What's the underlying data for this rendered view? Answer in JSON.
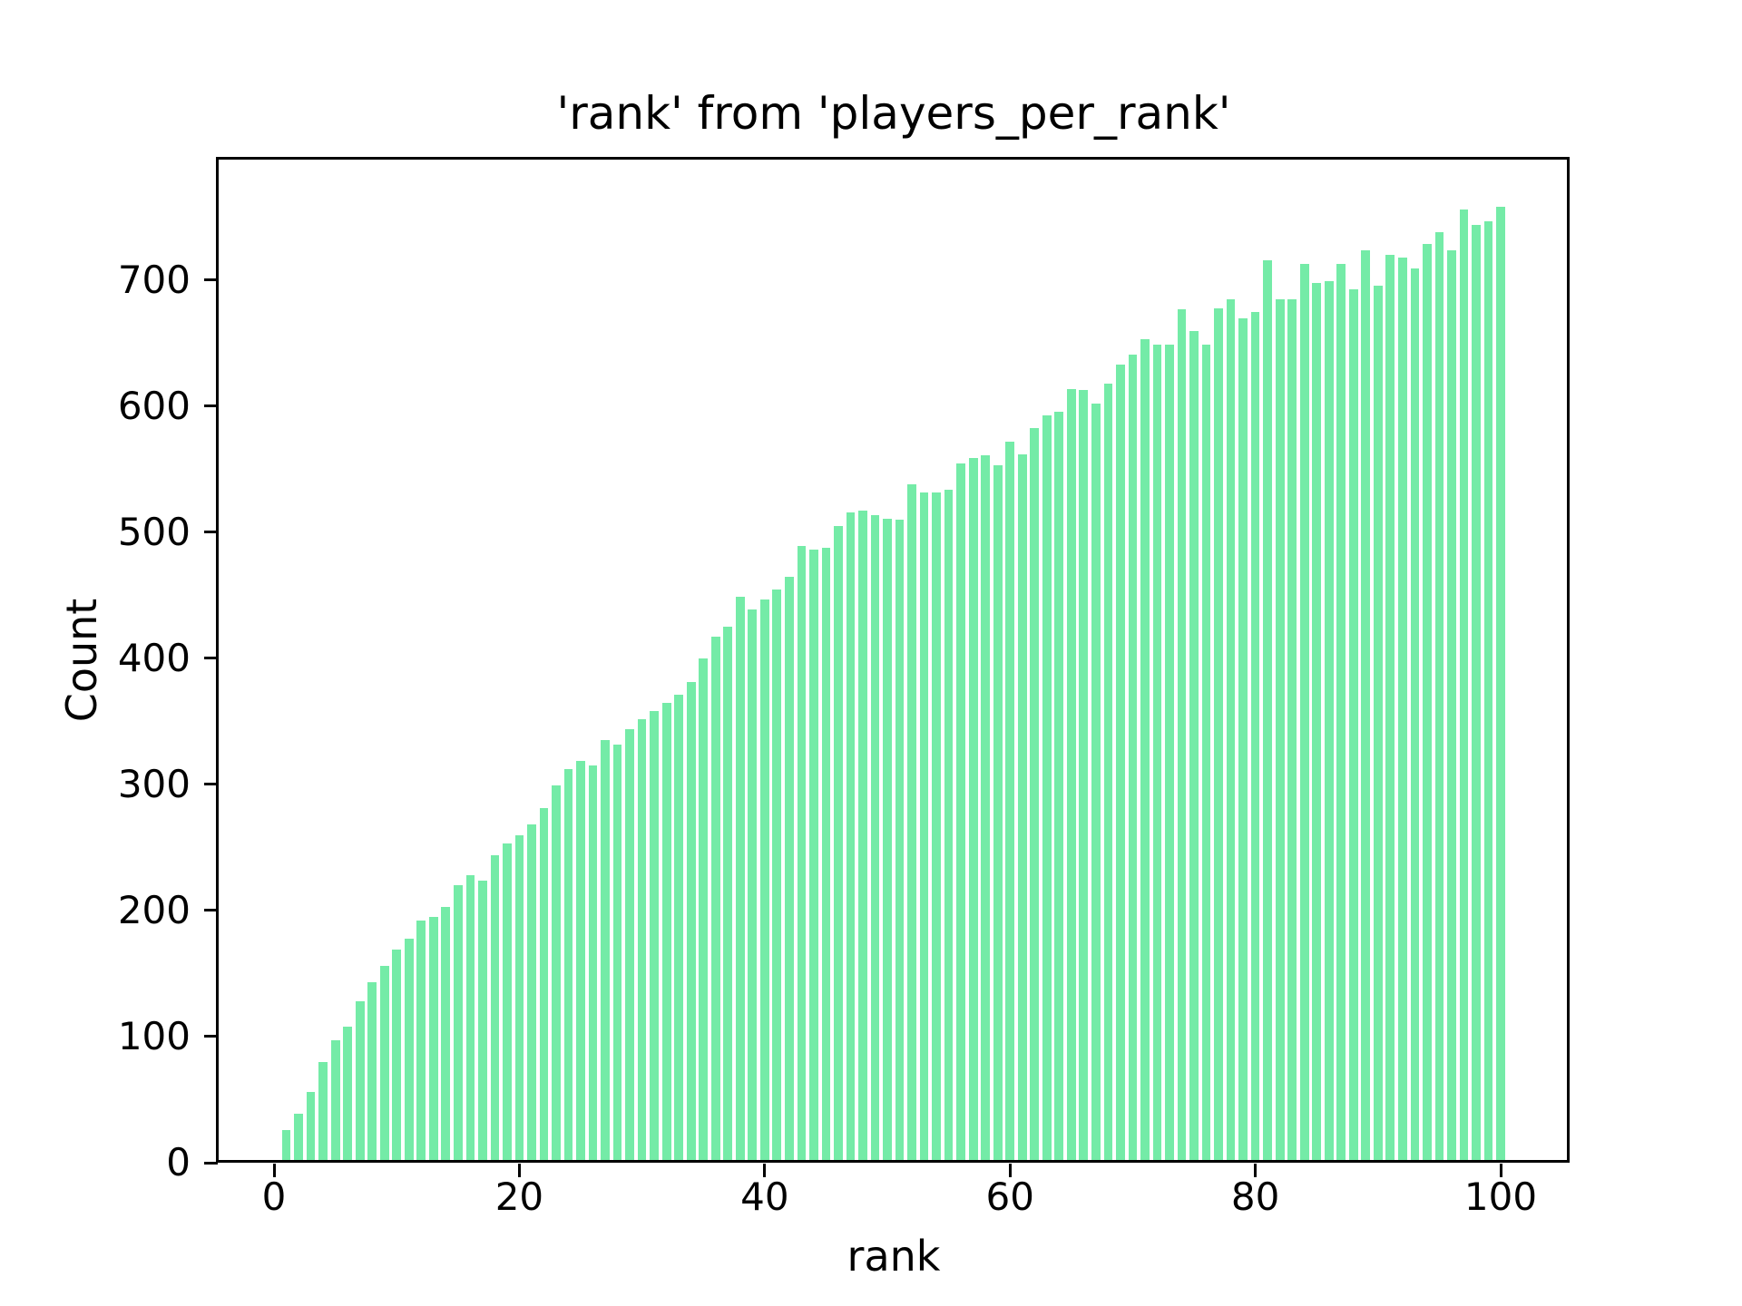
{
  "figure": {
    "background": "#ffffff"
  },
  "chart_data": {
    "type": "bar",
    "title": "'rank' from 'players_per_rank'",
    "xlabel": "rank",
    "ylabel": "Count",
    "x_start": 1,
    "x_step": 1,
    "values": [
      26,
      39,
      56,
      80,
      97,
      108,
      128,
      143,
      156,
      169,
      178,
      192,
      195,
      203,
      220,
      228,
      224,
      244,
      253,
      260,
      268,
      281,
      299,
      312,
      319,
      315,
      335,
      332,
      344,
      352,
      358,
      365,
      371,
      381,
      400,
      417,
      425,
      449,
      439,
      447,
      455,
      465,
      489,
      486,
      488,
      505,
      516,
      517,
      514,
      511,
      510,
      538,
      532,
      532,
      534,
      555,
      559,
      561,
      553,
      572,
      562,
      583,
      593,
      596,
      614,
      613,
      602,
      618,
      633,
      641,
      653,
      649,
      649,
      677,
      660,
      649,
      678,
      685,
      670,
      675,
      716,
      685,
      685,
      713,
      698,
      699,
      713,
      693,
      724,
      696,
      720,
      718,
      709,
      729,
      738,
      724,
      756,
      744,
      747,
      758
    ],
    "xticks": [
      0,
      20,
      40,
      60,
      80,
      100
    ],
    "yticks": [
      0,
      100,
      200,
      300,
      400,
      500,
      600,
      700
    ],
    "xlim": [
      -4.59,
      105.62
    ],
    "ylim": [
      0,
      796.4
    ],
    "bar_width": 0.72,
    "bar_color": "#74eba7",
    "axis_color": "#000000",
    "text_color": "#000000",
    "grid": false,
    "legend": null
  }
}
